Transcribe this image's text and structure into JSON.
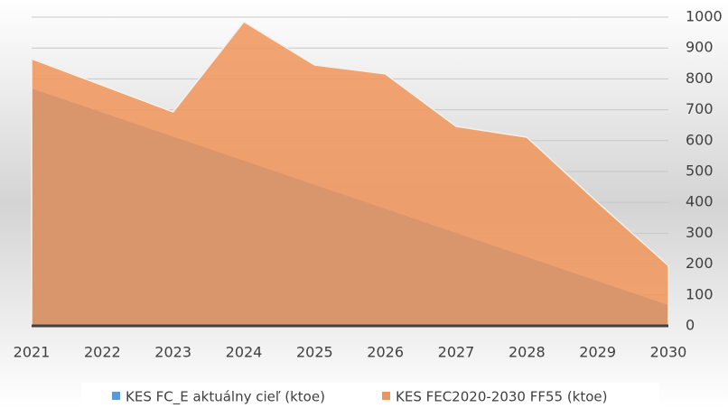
{
  "chart_data": {
    "type": "area",
    "categories": [
      "2021",
      "2022",
      "2023",
      "2024",
      "2025",
      "2026",
      "2027",
      "2028",
      "2029",
      "2030"
    ],
    "series": [
      {
        "name": "KES FC_E aktuálny cieľ (ktoe)",
        "color": "#5b9bd5",
        "values": [
          769,
          691,
          613,
          535,
          457,
          379,
          301,
          223,
          145,
          67
        ]
      },
      {
        "name": "KES FEC2020-2030 FF55 (ktoe)",
        "color": "#f0955a",
        "values": [
          865,
          779,
          693,
          985,
          845,
          816,
          646,
          611,
          400,
          195
        ]
      }
    ],
    "ylim": [
      0,
      1000
    ],
    "yticks": [
      0,
      100,
      200,
      300,
      400,
      500,
      600,
      700,
      800,
      900,
      1000
    ],
    "grid": true
  }
}
